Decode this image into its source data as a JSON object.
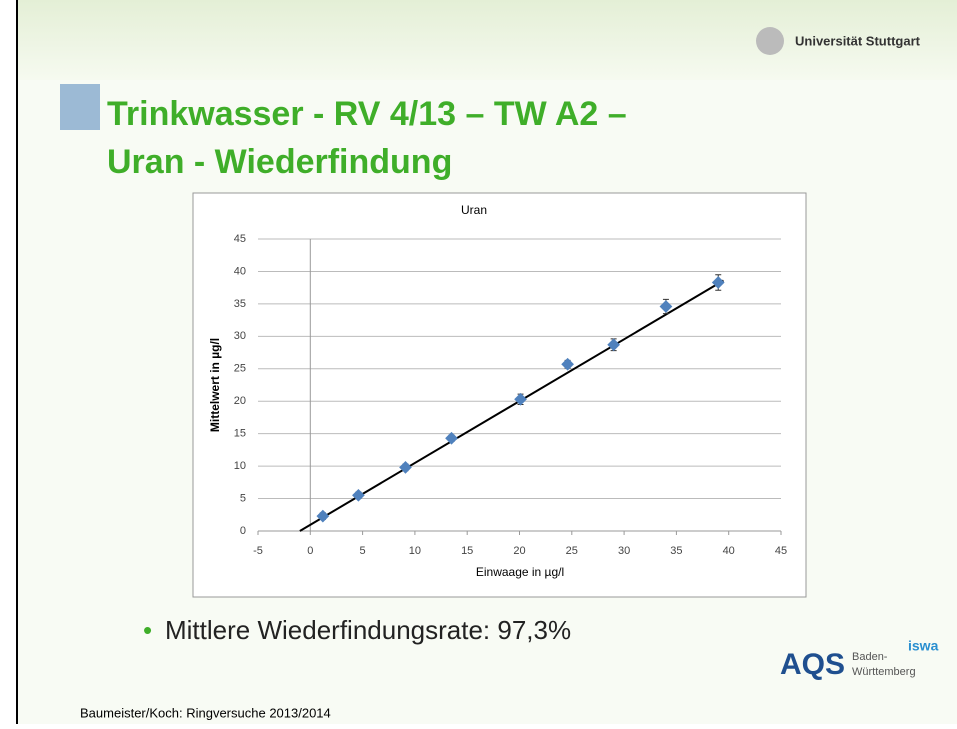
{
  "header": {
    "university": "Universität Stuttgart"
  },
  "title": [
    "Trinkwasser - RV 4/13 – TW A2 –",
    "Uran - Wiederfindung"
  ],
  "chart_data": {
    "type": "scatter",
    "title": "Uran",
    "x_label": "Einwaage in µg/l",
    "y_label": "Mittelwert in µg/l",
    "x": [
      1.2,
      4.6,
      9.1,
      13.5,
      20.1,
      24.6,
      29.0,
      34.0,
      39.0
    ],
    "values": [
      2.3,
      5.5,
      9.8,
      14.3,
      20.3,
      25.7,
      28.7,
      34.6,
      38.3
    ],
    "errors": [
      0.5,
      0.5,
      0.5,
      0.5,
      0.8,
      0.6,
      0.9,
      1.1,
      1.2
    ],
    "color": "#4f81bd",
    "trendline": {
      "x": [
        -1,
        39.5
      ],
      "values": [
        0,
        38.6
      ],
      "color": "#000000"
    },
    "xlim": [
      -5,
      45
    ],
    "xticks": [
      -5,
      0,
      5,
      10,
      15,
      20,
      25,
      30,
      35,
      40,
      45
    ],
    "ylim": [
      0,
      45
    ],
    "yticks": [
      0,
      5,
      10,
      15,
      20,
      25,
      30,
      35,
      40,
      45
    ],
    "grid": true
  },
  "bullet": "Mittlere Wiederfindungsrate: 97,3%",
  "logo": {
    "aqs": "AQS",
    "state1": "Baden-",
    "state2": "Württemberg",
    "iswa": "iswa"
  },
  "footer": "Baumeister/Koch: Ringversuche 2013/2014"
}
